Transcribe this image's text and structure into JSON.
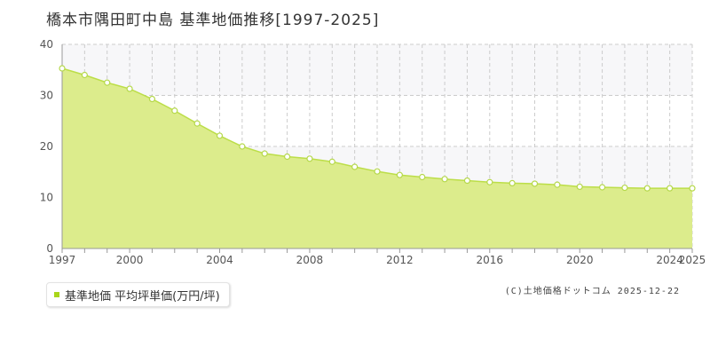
{
  "title": "橋本市隅田町中島 基準地価推移[1997-2025]",
  "legend": {
    "label": "基準地価 平均坪単価(万円/坪)"
  },
  "credit": "(C)土地価格ドットコム 2025-12-22",
  "colors": {
    "area_fill": "#dcec8c",
    "line": "#bcde48",
    "point_fill": "#ffffff",
    "point_stroke": "#b5d84a",
    "band": "#f7f7f9",
    "grid": "#cccccc",
    "axis": "#999999"
  },
  "chart_data": {
    "type": "area",
    "title": "橋本市隅田町中島 基準地価推移[1997-2025]",
    "xlabel": "",
    "ylabel": "",
    "x_ticks": [
      "1997",
      "2000",
      "2004",
      "2008",
      "2012",
      "2016",
      "2020",
      "2024",
      "2025"
    ],
    "y_ticks": [
      "0",
      "10",
      "20",
      "30",
      "40"
    ],
    "ylim": [
      0,
      40
    ],
    "xlim": [
      1997,
      2025
    ],
    "grid": true,
    "legend_position": "bottom-left",
    "series": [
      {
        "name": "基準地価 平均坪単価(万円/坪)",
        "x": [
          1997,
          1998,
          1999,
          2000,
          2001,
          2002,
          2003,
          2004,
          2005,
          2006,
          2007,
          2008,
          2009,
          2010,
          2011,
          2012,
          2013,
          2014,
          2015,
          2016,
          2017,
          2018,
          2019,
          2020,
          2021,
          2022,
          2023,
          2024,
          2025
        ],
        "values": [
          35.3,
          34.0,
          32.5,
          31.3,
          29.3,
          27.0,
          24.5,
          22.1,
          20.0,
          18.6,
          18.0,
          17.6,
          17.0,
          16.0,
          15.1,
          14.4,
          14.0,
          13.6,
          13.3,
          13.0,
          12.8,
          12.7,
          12.5,
          12.1,
          12.0,
          11.9,
          11.8,
          11.8,
          11.8
        ]
      }
    ]
  }
}
